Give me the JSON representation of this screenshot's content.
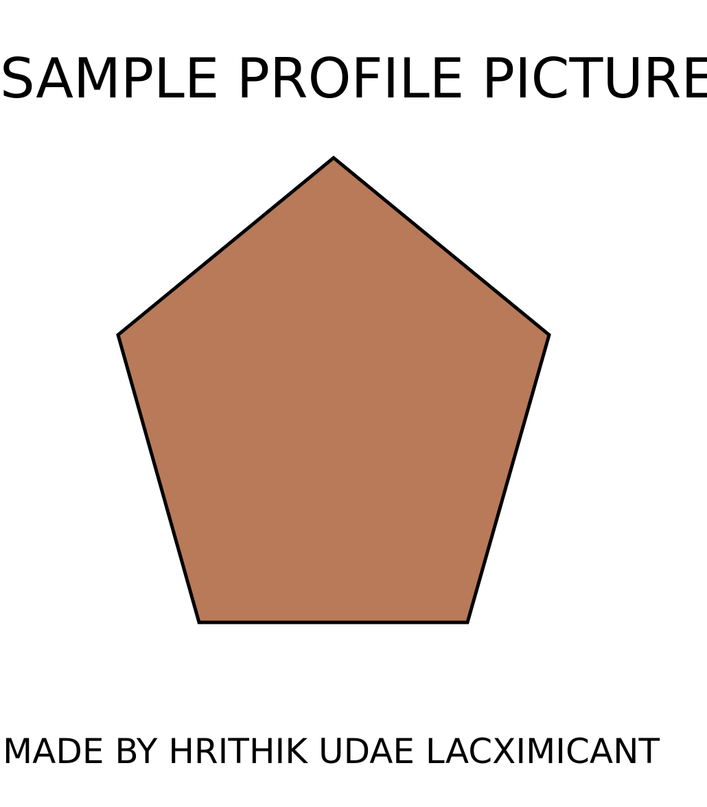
{
  "title": "SAMPLE PROFILE PICTURE",
  "credit": "MADE BY HRITHIK UDAE LACXIMICANT",
  "shape": {
    "icon": "pentagon-icon",
    "fill_color": "#b87a58",
    "stroke_color": "#000000"
  },
  "colors": {
    "background": "#ffffff",
    "text": "#000000"
  }
}
